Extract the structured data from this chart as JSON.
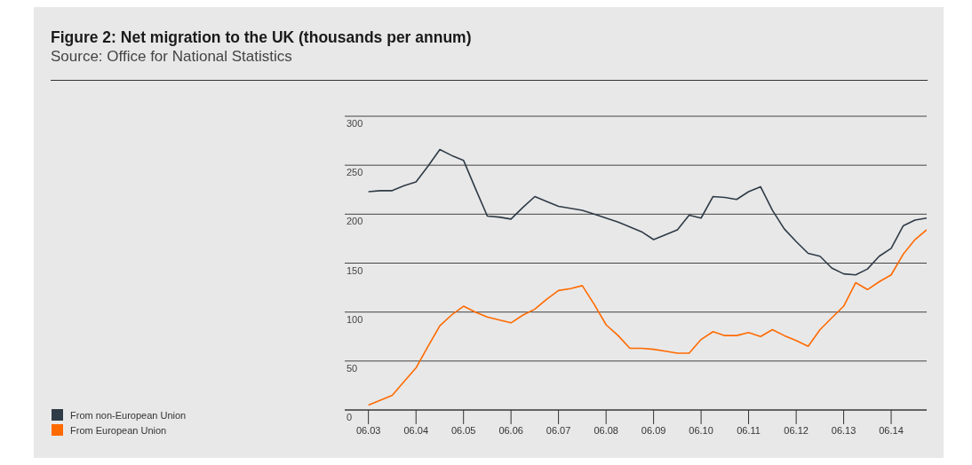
{
  "chart_data": {
    "type": "line",
    "title": "Figure 2: Net migration to the UK (thousands per annum)",
    "annotations": [
      "Source: Office for National Statistics"
    ],
    "x": [
      "2003-06",
      "2003-09",
      "2003-12",
      "2004-03",
      "2004-06",
      "2004-09",
      "2004-12",
      "2005-03",
      "2005-06",
      "2005-09",
      "2005-12",
      "2006-03",
      "2006-06",
      "2006-09",
      "2006-12",
      "2007-03",
      "2007-06",
      "2007-09",
      "2007-12",
      "2008-03",
      "2008-06",
      "2008-09",
      "2008-12",
      "2009-03",
      "2009-06",
      "2009-09",
      "2009-12",
      "2010-03",
      "2010-06",
      "2010-09",
      "2010-12",
      "2011-03",
      "2011-06",
      "2011-09",
      "2011-12",
      "2012-03",
      "2012-06",
      "2012-09",
      "2012-12",
      "2013-03",
      "2013-06",
      "2013-09",
      "2013-12",
      "2014-03",
      "2014-06",
      "2014-09",
      "2014-12",
      "2015-03"
    ],
    "series": [
      {
        "name": "From non-European Union",
        "color": "#2f3b47",
        "values": [
          223,
          224,
          224,
          229,
          233,
          249,
          266,
          260,
          255,
          226,
          198,
          197,
          195,
          207,
          218,
          213,
          208,
          206,
          204,
          200,
          196,
          192,
          187,
          182,
          174,
          179,
          184,
          199,
          196,
          218,
          217,
          215,
          223,
          228,
          204,
          185,
          172,
          160,
          157,
          145,
          139,
          138,
          144,
          157,
          165,
          188,
          194,
          196
        ]
      },
      {
        "name": "From European Union",
        "color": "#ff6a00",
        "values": [
          5,
          10,
          15,
          29,
          43,
          65,
          86,
          97,
          106,
          100,
          95,
          92,
          89,
          97,
          103,
          113,
          122,
          124,
          127,
          108,
          87,
          76,
          63,
          63,
          62,
          60,
          58,
          58,
          72,
          80,
          76,
          76,
          79,
          75,
          82,
          76,
          71,
          65,
          82,
          94,
          106,
          130,
          123,
          131,
          138,
          159,
          174,
          184
        ]
      }
    ],
    "xlim": [
      "2002-12",
      "2015-03"
    ],
    "xticks": [
      {
        "value": "2003-06",
        "label": "06.03"
      },
      {
        "value": "2004-06",
        "label": "06.04"
      },
      {
        "value": "2005-06",
        "label": "06.05"
      },
      {
        "value": "2006-06",
        "label": "06.06"
      },
      {
        "value": "2007-06",
        "label": "06.07"
      },
      {
        "value": "2008-06",
        "label": "06.08"
      },
      {
        "value": "2009-06",
        "label": "06.09"
      },
      {
        "value": "2010-06",
        "label": "06.10"
      },
      {
        "value": "2011-06",
        "label": "06.11"
      },
      {
        "value": "2012-06",
        "label": "06.12"
      },
      {
        "value": "2013-06",
        "label": "06.13"
      },
      {
        "value": "2014-06",
        "label": "06.14"
      }
    ],
    "ylim": [
      0,
      300
    ],
    "yticks": [
      0,
      50,
      100,
      150,
      200,
      250,
      300
    ],
    "grid": "y",
    "legend": "bottom left"
  }
}
